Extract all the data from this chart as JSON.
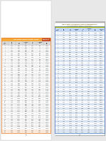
{
  "bg_color": "#e8e8e8",
  "page_bg_left": "#ffffff",
  "page_bg_right": "#ffffff",
  "header_color_left": "#f4a93a",
  "header_color_right": "#c8a000",
  "col_header_bg_left": "#d9d9d9",
  "col_header_bg_right": "#c6d9f1",
  "row_alt_left": "#f2f2f2",
  "row_white": "#ffffff",
  "row_alt_right": "#dce6f1",
  "border_left": "#e87722",
  "border_right": "#4472c4",
  "text_dark": "#333333",
  "text_header": "#ffffff",
  "bottom_band_left": "#fde9d9",
  "bottom_band_right": "#dce6f1",
  "title_bg_left": "#f4a93a",
  "title_bg_right": "#bfbf00",
  "fold_color": "#d0d0d0",
  "shadow_color": "#b0b0b0"
}
